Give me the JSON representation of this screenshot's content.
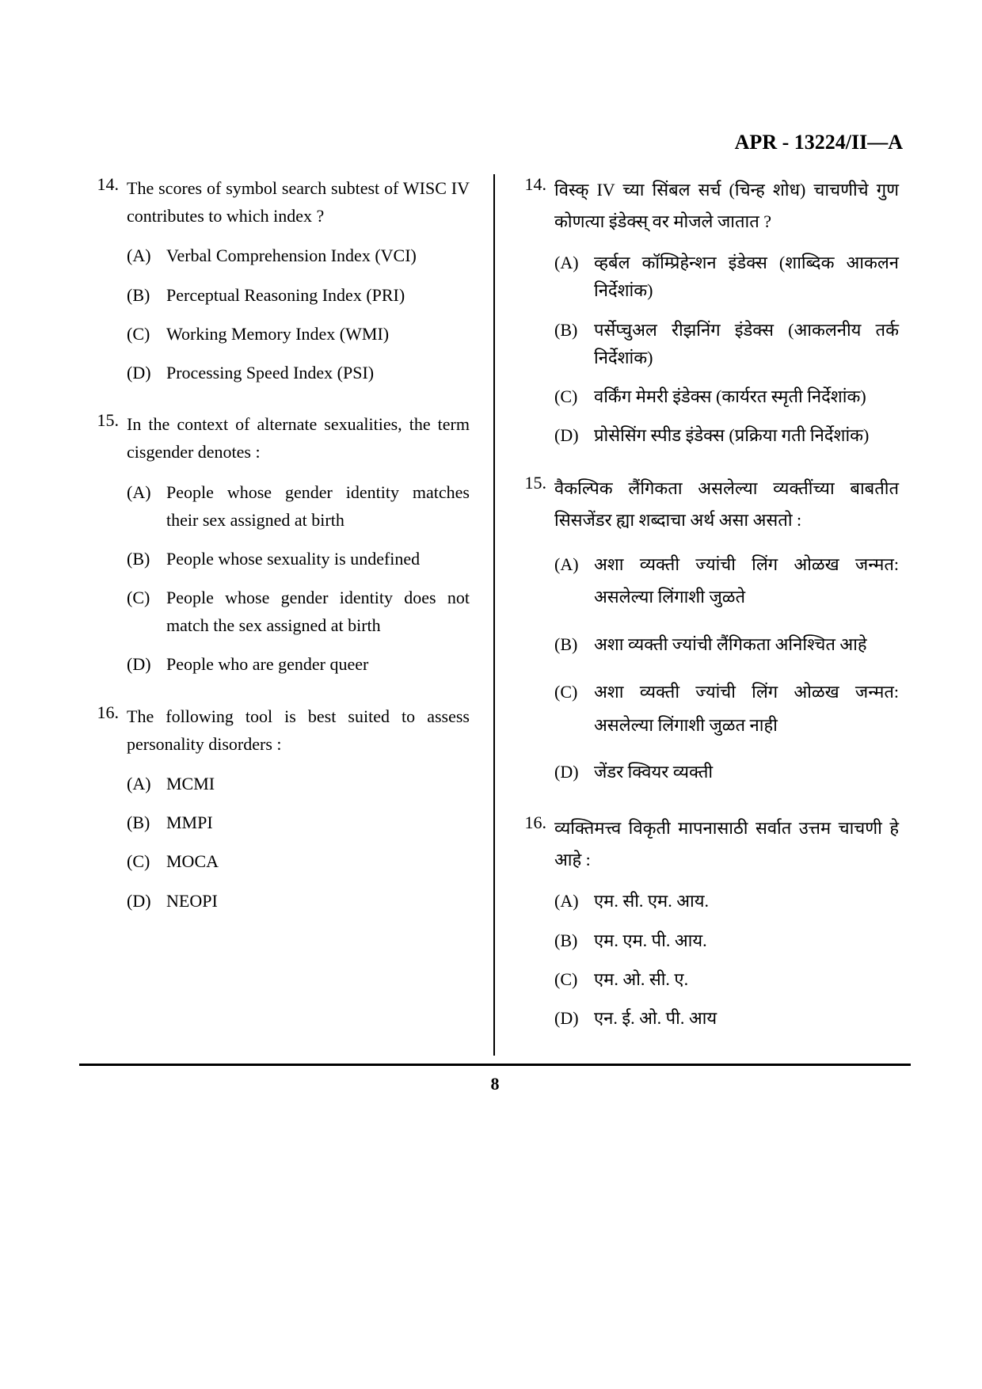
{
  "header": "APR - 13224/II—A",
  "pageNumber": "8",
  "leftColumn": {
    "questions": [
      {
        "number": "14.",
        "text": "The scores of symbol search subtest of WISC IV contributes to which index ?",
        "options": [
          {
            "label": "(A)",
            "text": "Verbal Comprehension Index (VCI)"
          },
          {
            "label": "(B)",
            "text": "Perceptual Reasoning Index (PRI)"
          },
          {
            "label": "(C)",
            "text": "Working Memory Index (WMI)"
          },
          {
            "label": "(D)",
            "text": "Processing Speed Index (PSI)"
          }
        ]
      },
      {
        "number": "15.",
        "text": "In the context of alternate sexualities, the term cisgender denotes :",
        "options": [
          {
            "label": "(A)",
            "text": "People whose gender identity matches their sex assigned at birth"
          },
          {
            "label": "(B)",
            "text": "People whose sexuality is undefined"
          },
          {
            "label": "(C)",
            "text": "People whose gender identity does not match the sex assigned at birth"
          },
          {
            "label": "(D)",
            "text": "People who are gender queer"
          }
        ]
      },
      {
        "number": "16.",
        "text": "The following tool is best suited to assess personality disorders :",
        "options": [
          {
            "label": "(A)",
            "text": "MCMI"
          },
          {
            "label": "(B)",
            "text": "MMPI"
          },
          {
            "label": "(C)",
            "text": "MOCA"
          },
          {
            "label": "(D)",
            "text": "NEOPI"
          }
        ]
      }
    ]
  },
  "rightColumn": {
    "questions": [
      {
        "number": "14.",
        "text": "विस्क् IV च्या सिंबल सर्च (चिन्ह शोध) चाचणीचे गुण कोणत्या इंडेक्स् वर मोजले जातात ?",
        "options": [
          {
            "label": "(A)",
            "text": "व्हर्बल कॉम्प्रिहेन्शन इंडेक्स (शाब्दिक आकलन निर्देशांक)"
          },
          {
            "label": "(B)",
            "text": "पर्सेप्चुअल रीझनिंग इंडेक्स (आकलनीय तर्क निर्देशांक)"
          },
          {
            "label": "(C)",
            "text": "वर्किंग मेमरी इंडेक्स (कार्यरत स्मृती निर्देशांक)"
          },
          {
            "label": "(D)",
            "text": "प्रोसेसिंग स्पीड इंडेक्स (प्रक्रिया गती निर्देशांक)"
          }
        ]
      },
      {
        "number": "15.",
        "text": "वैकल्पिक लैंगिकता असलेल्या व्यक्तींच्या बाबतीत सिसजेंडर ह्या शब्दाचा अर्थ असा असतो :",
        "options": [
          {
            "label": "(A)",
            "text": "अशा व्यक्ती ज्यांची लिंग ओळख जन्मत: असलेल्या लिंगाशी जुळते"
          },
          {
            "label": "(B)",
            "text": "अशा व्यक्ती ज्यांची लैंगिकता अनिश्चित आहे"
          },
          {
            "label": "(C)",
            "text": "अशा व्यक्ती ज्यांची लिंग ओळख जन्मत: असलेल्या लिंगाशी जुळत नाही"
          },
          {
            "label": "(D)",
            "text": "जेंडर क्वियर व्यक्ती"
          }
        ]
      },
      {
        "number": "16.",
        "text": "व्यक्तिमत्त्व विकृती मापनासाठी सर्वात उत्तम चाचणी हे आहे :",
        "options": [
          {
            "label": "(A)",
            "text": "एम. सी. एम. आय."
          },
          {
            "label": "(B)",
            "text": "एम. एम. पी. आय."
          },
          {
            "label": "(C)",
            "text": "एम. ओ. सी. ए."
          },
          {
            "label": "(D)",
            "text": "एन. ई. ओ. पी. आय"
          }
        ]
      }
    ]
  }
}
